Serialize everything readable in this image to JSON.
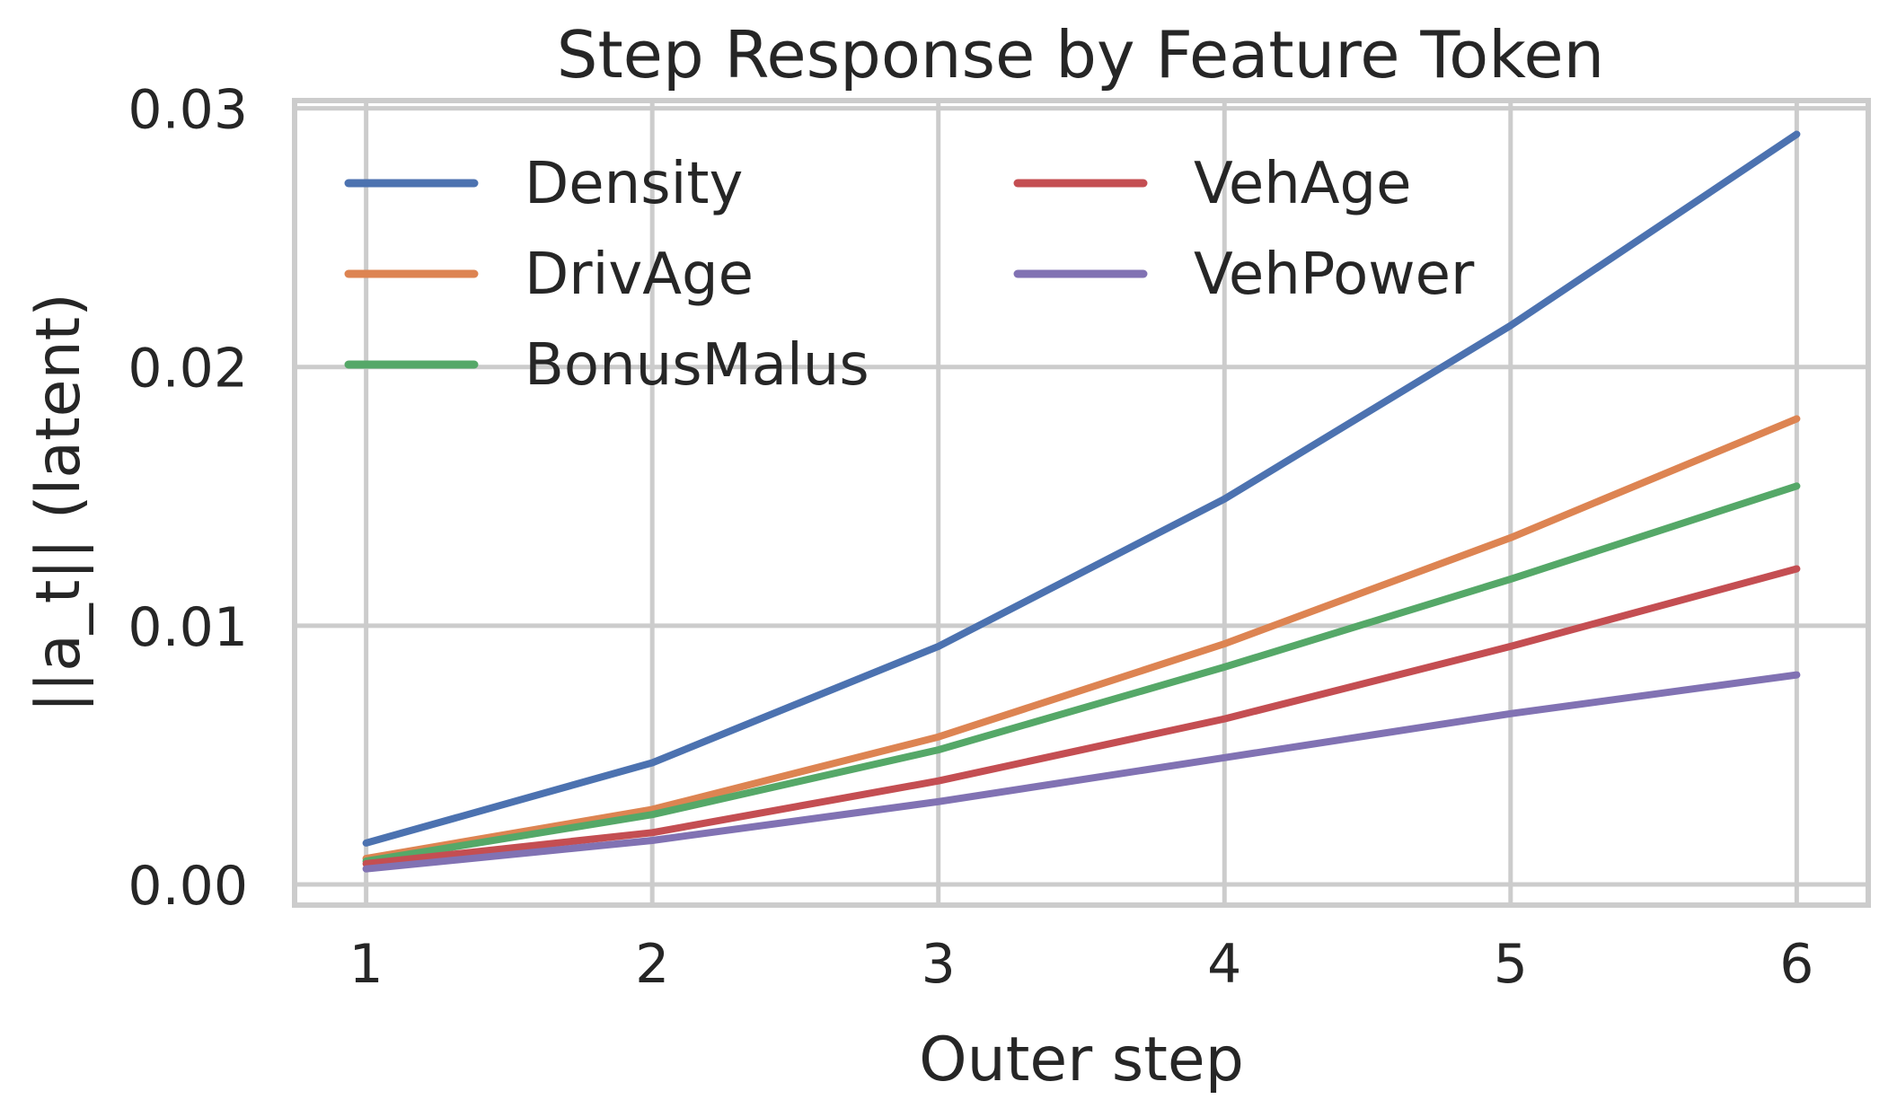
{
  "chart_data": {
    "type": "line",
    "title": "Step Response by Feature Token",
    "xlabel": "Outer step",
    "ylabel": "||a_t|| (latent)",
    "x": [
      1,
      2,
      3,
      4,
      5,
      6
    ],
    "xlim": [
      0.75,
      6.25
    ],
    "ylim": [
      -0.0008,
      0.0303
    ],
    "x_ticks": [
      1,
      2,
      3,
      4,
      5,
      6
    ],
    "x_tick_labels": [
      "1",
      "2",
      "3",
      "4",
      "5",
      "6"
    ],
    "y_ticks": [
      0.0,
      0.01,
      0.02,
      0.03
    ],
    "y_tick_labels": [
      "0.00",
      "0.01",
      "0.02",
      "0.03"
    ],
    "grid": true,
    "legend_position": "upper-left",
    "legend_columns": 2,
    "series": [
      {
        "name": "Density",
        "color": "#4c72b0",
        "values": [
          0.0016,
          0.0047,
          0.0092,
          0.0149,
          0.0216,
          0.029
        ]
      },
      {
        "name": "DrivAge",
        "color": "#dd8452",
        "values": [
          0.001,
          0.0029,
          0.0057,
          0.0093,
          0.0134,
          0.018
        ]
      },
      {
        "name": "BonusMalus",
        "color": "#55a868",
        "values": [
          0.0009,
          0.0027,
          0.0052,
          0.0084,
          0.0118,
          0.0154
        ]
      },
      {
        "name": "VehAge",
        "color": "#c44e52",
        "values": [
          0.0008,
          0.002,
          0.004,
          0.0064,
          0.0092,
          0.0122
        ]
      },
      {
        "name": "VehPower",
        "color": "#8172b3",
        "values": [
          0.0006,
          0.0017,
          0.0032,
          0.0049,
          0.0066,
          0.0081
        ]
      }
    ]
  }
}
